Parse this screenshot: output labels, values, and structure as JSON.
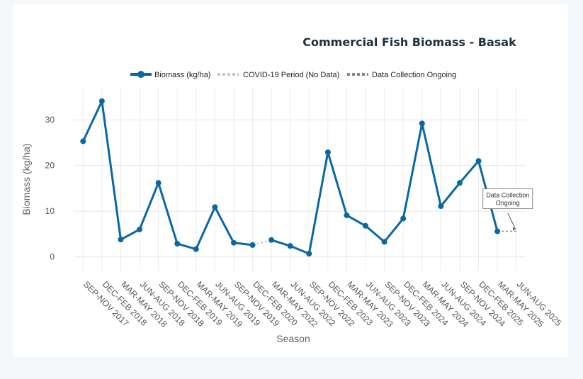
{
  "chart_data": {
    "type": "line",
    "title": "Commercial Fish Biomass - Basak",
    "xlabel": "Season",
    "ylabel": "Biomass (kg/ha)",
    "ylim": [
      -3,
      37
    ],
    "yticks": [
      0,
      10,
      20,
      30
    ],
    "categories": [
      "SEP-NOV 2017",
      "DEC-FEB 2018",
      "MAR-MAY 2018",
      "JUN-AUG 2018",
      "SEP-NOV 2018",
      "DEC-FEB 2019",
      "MAR-MAY 2019",
      "JUN-AUG 2019",
      "SEP-NOV 2019",
      "DEC-FEB 2020",
      "MAR-MAY 2022",
      "JUN-AUG 2022",
      "SEP-NOV 2022",
      "DEC-FEB 2023",
      "MAR-MAY 2023",
      "JUN-AUG 2023",
      "SEP-NOV 2023",
      "DEC-FEB 2024",
      "MAR-MAY 2024",
      "JUN-AUG 2024",
      "SEP-NOV 2024",
      "DEC-FEB 2025",
      "MAR-MAY 2025",
      "JUN-AUG 2025"
    ],
    "series": [
      {
        "name": "Biomass (kg/ha)",
        "color": "#0a67a3",
        "style": "solid",
        "values": [
          25.3,
          34.1,
          3.8,
          6.0,
          16.2,
          2.9,
          1.7,
          10.9,
          3.1,
          2.6,
          3.7,
          2.4,
          0.7,
          22.9,
          9.1,
          6.8,
          3.3,
          8.4,
          29.2,
          11.1,
          16.2,
          21.0,
          5.6,
          null
        ]
      },
      {
        "name": "COVID-19 Period (No Data)",
        "color": "#c8c8c8",
        "style": "dotted",
        "segment": [
          9,
          10
        ]
      },
      {
        "name": "Data Collection Ongoing",
        "color": "#8a8a8a",
        "style": "dotted",
        "segment": [
          22,
          23
        ],
        "values_at_segment": [
          5.6,
          5.6
        ]
      }
    ],
    "annotation": {
      "line1": "Data Collection",
      "line2": "Ongoing",
      "x_index": 23,
      "y": 5.6
    },
    "legend_position": "top-center",
    "grid": true
  }
}
